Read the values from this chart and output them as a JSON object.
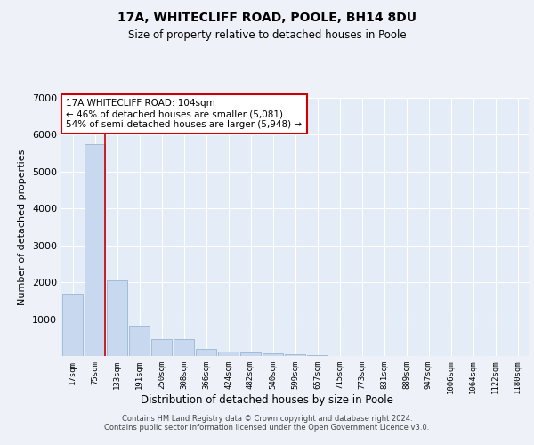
{
  "title1": "17A, WHITECLIFF ROAD, POOLE, BH14 8DU",
  "title2": "Size of property relative to detached houses in Poole",
  "xlabel": "Distribution of detached houses by size in Poole",
  "ylabel": "Number of detached properties",
  "categories": [
    "17sqm",
    "75sqm",
    "133sqm",
    "191sqm",
    "250sqm",
    "308sqm",
    "366sqm",
    "424sqm",
    "482sqm",
    "540sqm",
    "599sqm",
    "657sqm",
    "715sqm",
    "773sqm",
    "831sqm",
    "889sqm",
    "947sqm",
    "1006sqm",
    "1064sqm",
    "1122sqm",
    "1180sqm"
  ],
  "values": [
    1700,
    5750,
    2050,
    820,
    450,
    450,
    200,
    130,
    100,
    70,
    50,
    15,
    10,
    5,
    3,
    2,
    1,
    1,
    1,
    1,
    1
  ],
  "bar_color": "#c8d9ef",
  "bar_edge_color": "#a0bcd8",
  "vline_color": "#cc0000",
  "annotation_text": "17A WHITECLIFF ROAD: 104sqm\n← 46% of detached houses are smaller (5,081)\n54% of semi-detached houses are larger (5,948) →",
  "annotation_box_color": "white",
  "annotation_box_edge_color": "#cc0000",
  "ylim": [
    0,
    7000
  ],
  "yticks": [
    0,
    1000,
    2000,
    3000,
    4000,
    5000,
    6000,
    7000
  ],
  "footer1": "Contains HM Land Registry data © Crown copyright and database right 2024.",
  "footer2": "Contains public sector information licensed under the Open Government Licence v3.0.",
  "background_color": "#eef2f8",
  "plot_bg_color": "#e4ecf7",
  "grid_color": "#ffffff"
}
